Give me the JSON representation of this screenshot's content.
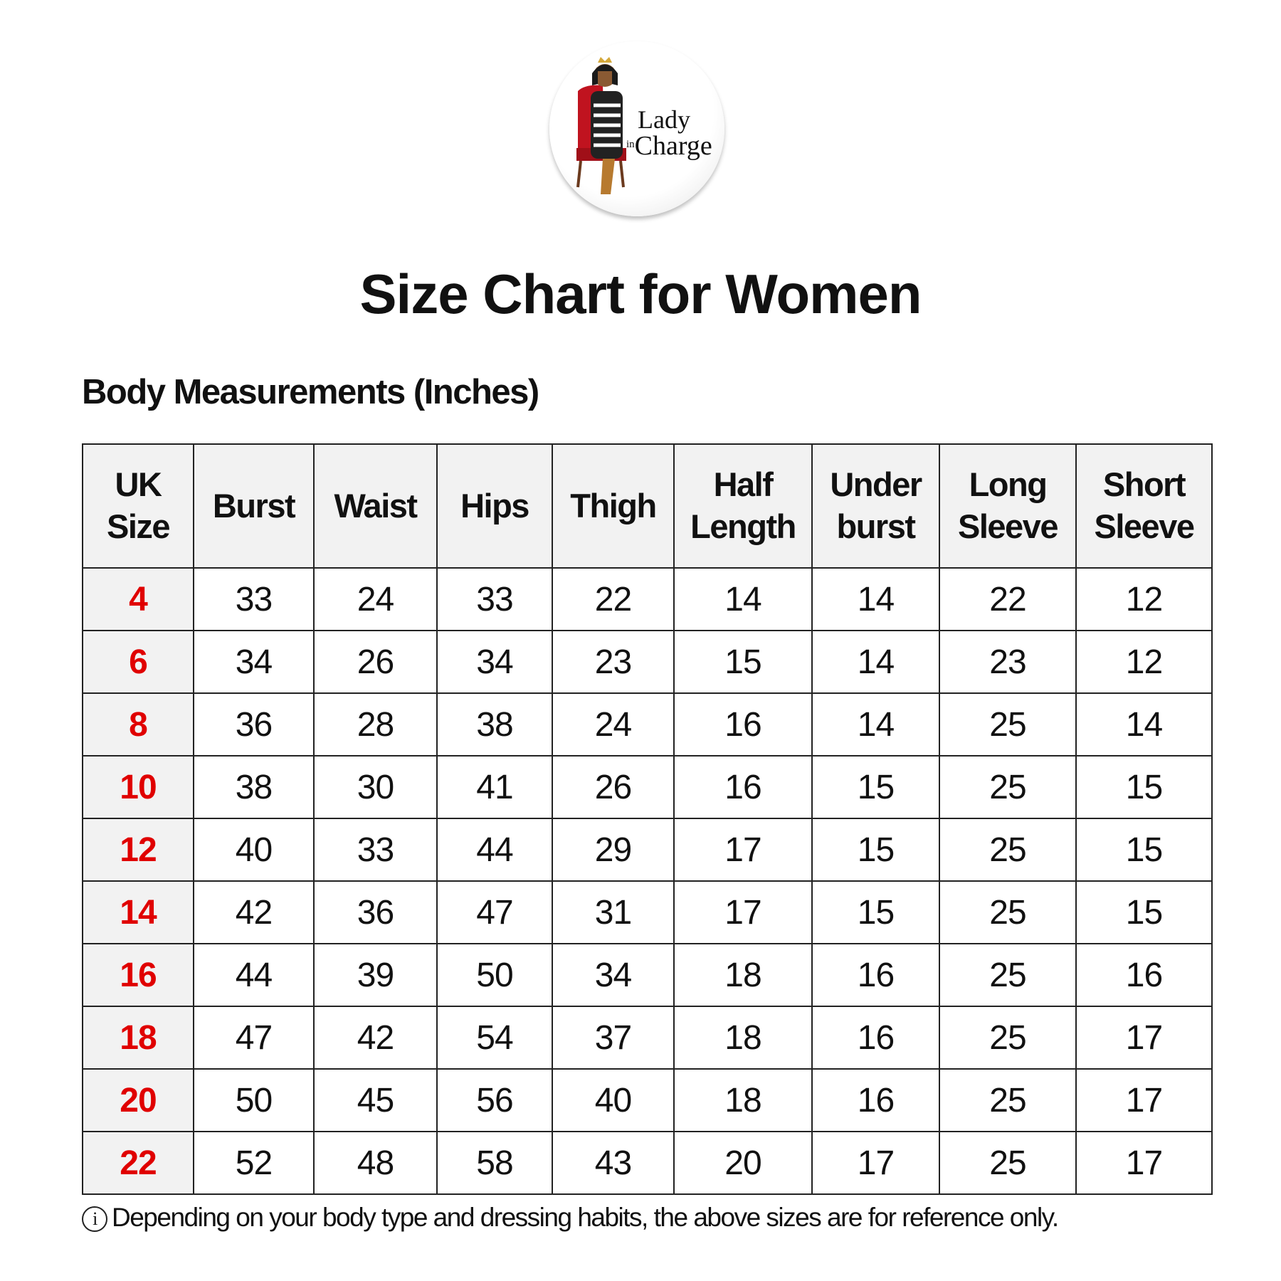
{
  "logo": {
    "line1": "Lady",
    "line2_small": "in",
    "line2": "Charge"
  },
  "title": "Size Chart for Women",
  "subtitle": "Body Measurements (Inches)",
  "table": {
    "headers": [
      [
        "UK",
        "Size"
      ],
      [
        "Burst"
      ],
      [
        "Waist"
      ],
      [
        "Hips"
      ],
      [
        "Thigh"
      ],
      [
        "Half",
        "Length"
      ],
      [
        "Under",
        "burst"
      ],
      [
        "Long",
        "Sleeve"
      ],
      [
        "Short",
        "Sleeve"
      ]
    ],
    "rows": [
      [
        "4",
        "33",
        "24",
        "33",
        "22",
        "14",
        "14",
        "22",
        "12"
      ],
      [
        "6",
        "34",
        "26",
        "34",
        "23",
        "15",
        "14",
        "23",
        "12"
      ],
      [
        "8",
        "36",
        "28",
        "38",
        "24",
        "16",
        "14",
        "25",
        "14"
      ],
      [
        "10",
        "38",
        "30",
        "41",
        "26",
        "16",
        "15",
        "25",
        "15"
      ],
      [
        "12",
        "40",
        "33",
        "44",
        "29",
        "17",
        "15",
        "25",
        "15"
      ],
      [
        "14",
        "42",
        "36",
        "47",
        "31",
        "17",
        "15",
        "25",
        "15"
      ],
      [
        "16",
        "44",
        "39",
        "50",
        "34",
        "18",
        "16",
        "25",
        "16"
      ],
      [
        "18",
        "47",
        "42",
        "54",
        "37",
        "18",
        "16",
        "25",
        "17"
      ],
      [
        "20",
        "50",
        "45",
        "56",
        "40",
        "18",
        "16",
        "25",
        "17"
      ],
      [
        "22",
        "52",
        "48",
        "58",
        "43",
        "20",
        "17",
        "25",
        "17"
      ]
    ]
  },
  "note": {
    "icon": "info-circle-icon",
    "icon_glyph": "i",
    "text": "Depending on your body type and dressing habits, the above sizes are for reference only."
  },
  "colors": {
    "size_red": "#e00000",
    "header_bg": "#f2f2f2"
  }
}
